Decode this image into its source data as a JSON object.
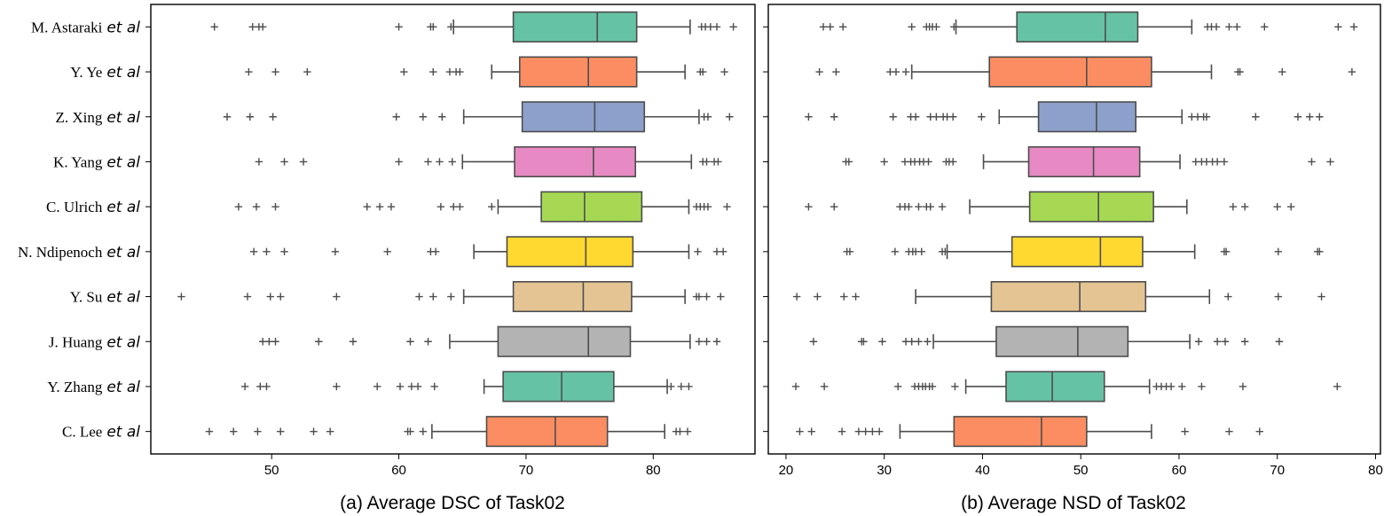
{
  "colors": {
    "palette": [
      "#66c2a5",
      "#fc8d62",
      "#8da0cb",
      "#e78ac3",
      "#a6d854",
      "#ffd92f",
      "#e5c494",
      "#b3b3b3",
      "#66c2a5",
      "#fc8d62"
    ],
    "edge": "#4d4d4d"
  },
  "chart_data": [
    {
      "type": "box",
      "panel": "a",
      "title": "(a) Average DSC of Task02",
      "xlabel": "",
      "xlim": [
        40.5,
        88
      ],
      "xticks": [
        50,
        60,
        70,
        80
      ],
      "categories": [
        {
          "name": "M. Astaraki",
          "suffix": "et al"
        },
        {
          "name": "Y. Ye",
          "suffix": "et al"
        },
        {
          "name": "Z. Xing",
          "suffix": "et al"
        },
        {
          "name": "K. Yang",
          "suffix": "et al"
        },
        {
          "name": "C. Ulrich",
          "suffix": "et al"
        },
        {
          "name": "N. Ndipenoch",
          "suffix": "et al"
        },
        {
          "name": "Y. Su",
          "suffix": "et al"
        },
        {
          "name": "J. Huang",
          "suffix": "et al"
        },
        {
          "name": "Y. Zhang",
          "suffix": "et al"
        },
        {
          "name": "C. Lee",
          "suffix": "et al"
        }
      ],
      "boxes": [
        {
          "whislo": 64.3,
          "q1": 69.0,
          "med": 75.6,
          "q3": 78.7,
          "whishi": 82.9,
          "fliers": [
            45.5,
            48.5,
            49.0,
            49.3,
            60.0,
            62.5,
            62.7,
            64.1,
            83.8,
            84.1,
            84.5,
            85.0,
            86.3
          ]
        },
        {
          "whislo": 67.3,
          "q1": 69.5,
          "med": 74.9,
          "q3": 78.7,
          "whishi": 82.5,
          "fliers": [
            48.2,
            50.3,
            52.8,
            60.4,
            62.7,
            64.0,
            64.5,
            64.8,
            83.7,
            83.9,
            85.6
          ]
        },
        {
          "whislo": 65.1,
          "q1": 69.7,
          "med": 75.4,
          "q3": 79.3,
          "whishi": 83.6,
          "fliers": [
            46.5,
            48.3,
            50.1,
            59.8,
            61.9,
            63.4,
            84.0,
            84.3,
            86.0
          ]
        },
        {
          "whislo": 65.0,
          "q1": 69.1,
          "med": 75.3,
          "q3": 78.6,
          "whishi": 83.0,
          "fliers": [
            49.0,
            51.0,
            52.5,
            60.0,
            62.3,
            63.2,
            64.2,
            83.9,
            84.2,
            84.8,
            85.1
          ]
        },
        {
          "whislo": 67.8,
          "q1": 71.2,
          "med": 74.6,
          "q3": 79.1,
          "whishi": 82.8,
          "fliers": [
            47.4,
            48.8,
            50.3,
            57.5,
            58.5,
            59.4,
            63.3,
            64.3,
            64.8,
            67.3,
            83.4,
            83.7,
            84.0,
            84.3,
            85.8
          ]
        },
        {
          "whislo": 65.9,
          "q1": 68.5,
          "med": 74.7,
          "q3": 78.4,
          "whishi": 82.8,
          "fliers": [
            48.6,
            49.6,
            51.0,
            55.0,
            59.1,
            62.5,
            62.9,
            83.5,
            85.0,
            85.5
          ]
        },
        {
          "whislo": 65.1,
          "q1": 69.0,
          "med": 74.5,
          "q3": 78.3,
          "whishi": 82.5,
          "fliers": [
            42.9,
            48.1,
            49.9,
            50.7,
            55.1,
            61.6,
            62.7,
            64.1,
            83.4,
            83.6,
            84.2,
            85.3
          ]
        },
        {
          "whislo": 64.0,
          "q1": 67.8,
          "med": 74.9,
          "q3": 78.2,
          "whishi": 82.9,
          "fliers": [
            49.3,
            49.8,
            50.3,
            53.7,
            56.4,
            60.9,
            62.3,
            83.6,
            84.2,
            85.0
          ]
        },
        {
          "whislo": 66.7,
          "q1": 68.2,
          "med": 72.8,
          "q3": 76.9,
          "whishi": 81.1,
          "fliers": [
            47.9,
            49.1,
            49.6,
            55.1,
            58.3,
            60.1,
            61.0,
            61.5,
            62.8,
            81.4,
            82.2,
            82.8
          ]
        },
        {
          "whislo": 62.6,
          "q1": 66.9,
          "med": 72.3,
          "q3": 76.4,
          "whishi": 80.9,
          "fliers": [
            45.1,
            47.0,
            48.9,
            50.7,
            53.3,
            54.6,
            60.7,
            60.9,
            61.9,
            81.8,
            82.1,
            82.7
          ]
        }
      ]
    },
    {
      "type": "box",
      "panel": "b",
      "title": "(b) Average NSD of Task02",
      "xlabel": "",
      "xlim": [
        18.2,
        80.5
      ],
      "xticks": [
        20,
        30,
        40,
        50,
        60,
        70,
        80
      ],
      "categories": [
        {
          "name": "M. Astaraki",
          "suffix": "et al"
        },
        {
          "name": "Y. Ye",
          "suffix": "et al"
        },
        {
          "name": "Z. Xing",
          "suffix": "et al"
        },
        {
          "name": "K. Yang",
          "suffix": "et al"
        },
        {
          "name": "C. Ulrich",
          "suffix": "et al"
        },
        {
          "name": "N. Ndipenoch",
          "suffix": "et al"
        },
        {
          "name": "Y. Su",
          "suffix": "et al"
        },
        {
          "name": "J. Huang",
          "suffix": "et al"
        },
        {
          "name": "Y. Zhang",
          "suffix": "et al"
        },
        {
          "name": "C. Lee",
          "suffix": "et al"
        }
      ],
      "boxes": [
        {
          "whislo": 37.3,
          "q1": 43.5,
          "med": 52.5,
          "q3": 55.8,
          "whishi": 61.3,
          "fliers": [
            23.8,
            24.5,
            25.8,
            32.8,
            34.3,
            34.6,
            34.9,
            35.3,
            37.1,
            62.9,
            63.3,
            63.8,
            65.1,
            65.9,
            68.7,
            76.2,
            77.8
          ]
        },
        {
          "whislo": 32.8,
          "q1": 40.7,
          "med": 50.6,
          "q3": 57.2,
          "whishi": 63.3,
          "fliers": [
            23.4,
            25.1,
            30.6,
            31.2,
            32.2,
            66.0,
            66.2,
            70.5,
            77.6
          ]
        },
        {
          "whislo": 41.7,
          "q1": 45.7,
          "med": 51.6,
          "q3": 55.6,
          "whishi": 60.3,
          "fliers": [
            22.3,
            24.9,
            30.9,
            32.7,
            33.2,
            34.7,
            35.3,
            36.0,
            36.4,
            37.0,
            39.9,
            61.3,
            61.9,
            62.5,
            62.8,
            67.8,
            72.1,
            73.3,
            74.3
          ]
        },
        {
          "whislo": 40.1,
          "q1": 44.7,
          "med": 51.3,
          "q3": 56.0,
          "whishi": 60.1,
          "fliers": [
            26.1,
            26.4,
            30.0,
            32.1,
            32.7,
            33.1,
            33.6,
            34.0,
            34.5,
            36.3,
            36.6,
            37.0,
            61.7,
            62.3,
            62.8,
            63.4,
            63.9,
            64.6,
            73.5,
            75.4
          ]
        },
        {
          "whislo": 38.7,
          "q1": 44.8,
          "med": 51.8,
          "q3": 57.4,
          "whishi": 60.8,
          "fliers": [
            22.3,
            24.9,
            31.6,
            32.1,
            32.5,
            33.5,
            34.3,
            34.7,
            35.9,
            65.5,
            66.7,
            70.0,
            71.4
          ]
        },
        {
          "whislo": 36.4,
          "q1": 43.0,
          "med": 52.0,
          "q3": 56.3,
          "whishi": 61.6,
          "fliers": [
            26.2,
            26.5,
            31.1,
            32.5,
            32.9,
            33.2,
            33.8,
            35.9,
            36.2,
            64.6,
            64.8,
            70.1,
            74.1,
            74.3
          ]
        },
        {
          "whislo": 33.2,
          "q1": 40.9,
          "med": 49.9,
          "q3": 56.6,
          "whishi": 63.1,
          "fliers": [
            21.1,
            23.2,
            25.9,
            27.1,
            65.0,
            70.1,
            74.5
          ]
        },
        {
          "whislo": 35.0,
          "q1": 41.4,
          "med": 49.7,
          "q3": 54.8,
          "whishi": 61.1,
          "fliers": [
            22.8,
            27.7,
            27.9,
            29.8,
            32.2,
            32.8,
            33.5,
            34.4,
            62.0,
            63.9,
            64.7,
            66.7,
            70.2
          ]
        },
        {
          "whislo": 38.3,
          "q1": 42.4,
          "med": 47.1,
          "q3": 52.4,
          "whishi": 57.0,
          "fliers": [
            21.0,
            23.9,
            31.4,
            33.1,
            33.5,
            33.9,
            34.2,
            34.6,
            34.9,
            37.2,
            57.7,
            58.2,
            58.7,
            59.2,
            60.3,
            62.3,
            66.5,
            76.1
          ]
        },
        {
          "whislo": 31.6,
          "q1": 37.1,
          "med": 46.0,
          "q3": 50.6,
          "whishi": 57.2,
          "fliers": [
            21.4,
            22.6,
            25.7,
            27.4,
            28.1,
            28.8,
            29.5,
            60.6,
            65.1,
            68.2
          ]
        }
      ]
    }
  ]
}
